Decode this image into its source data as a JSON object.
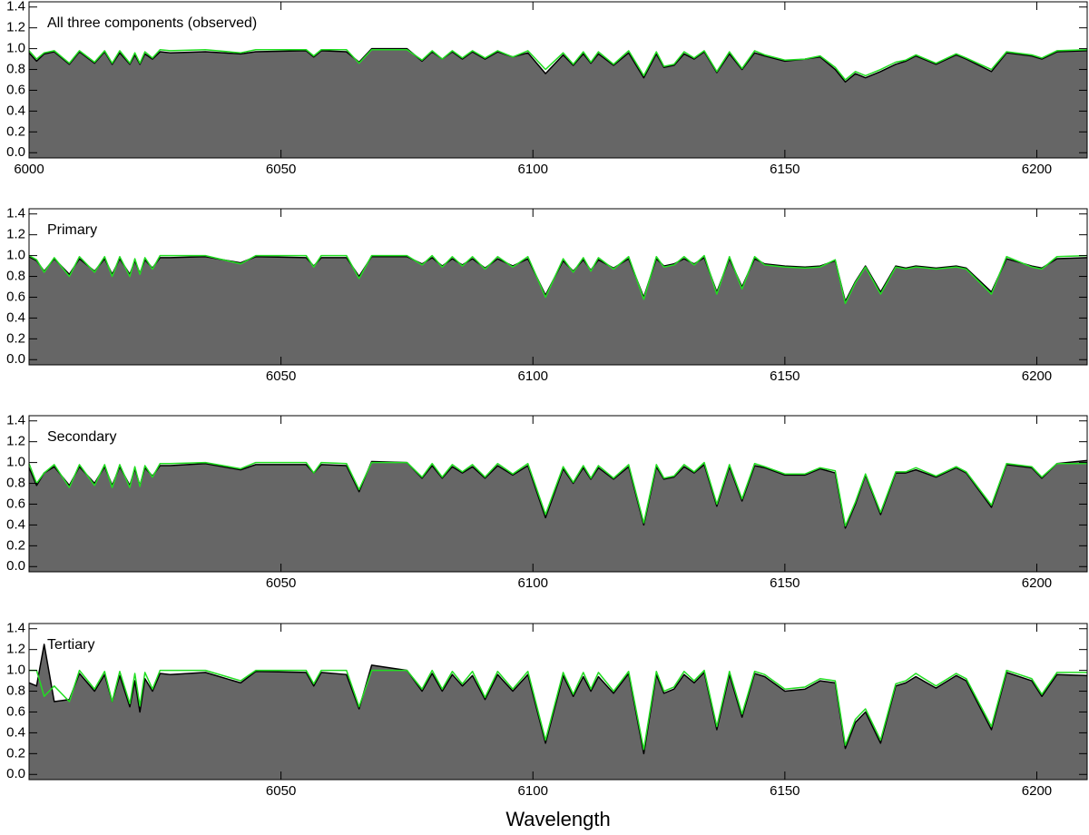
{
  "chart_data": [
    {
      "type": "line",
      "title": "All three components (observed)",
      "x": [
        6000,
        6001.5,
        6003,
        6005,
        6008,
        6010,
        6013,
        6015,
        6016.5,
        6018,
        6020,
        6021,
        6022,
        6023,
        6024.5,
        6026,
        6028,
        6035,
        6042,
        6045,
        6055,
        6056.5,
        6058,
        6063,
        6065.5,
        6068,
        6075,
        6078,
        6080,
        6082,
        6084,
        6086,
        6088,
        6090.5,
        6093,
        6096,
        6099,
        6102.5,
        6106,
        6108,
        6110,
        6111.5,
        6113,
        6116,
        6119,
        6122,
        6124.5,
        6126,
        6128,
        6130,
        6132,
        6134,
        6136.5,
        6139,
        6141.5,
        6144,
        6146,
        6150,
        6154,
        6157,
        6160,
        6162,
        6164,
        6166,
        6169,
        6172,
        6174,
        6176,
        6180,
        6184,
        6186,
        6191,
        6194,
        6199,
        6201,
        6204,
        6210
      ],
      "series": [
        {
          "color": "#000000",
          "fill": "#666666",
          "values": [
            0.96,
            0.88,
            0.95,
            0.97,
            0.85,
            0.97,
            0.86,
            0.97,
            0.85,
            0.96,
            0.85,
            0.94,
            0.85,
            0.95,
            0.9,
            0.97,
            0.96,
            0.97,
            0.95,
            0.97,
            0.98,
            0.92,
            0.98,
            0.97,
            0.87,
            1.0,
            1.0,
            0.88,
            0.97,
            0.9,
            0.97,
            0.9,
            0.97,
            0.9,
            0.97,
            0.92,
            0.96,
            0.76,
            0.94,
            0.84,
            0.95,
            0.86,
            0.95,
            0.84,
            0.96,
            0.72,
            0.95,
            0.82,
            0.84,
            0.95,
            0.9,
            0.97,
            0.77,
            0.95,
            0.8,
            0.96,
            0.93,
            0.88,
            0.9,
            0.92,
            0.8,
            0.68,
            0.76,
            0.72,
            0.78,
            0.85,
            0.88,
            0.93,
            0.85,
            0.94,
            0.9,
            0.78,
            0.96,
            0.93,
            0.9,
            0.97,
            0.98
          ]
        },
        {
          "color": "#22dd22",
          "values": [
            0.98,
            0.9,
            0.96,
            0.98,
            0.86,
            0.98,
            0.87,
            0.98,
            0.86,
            0.98,
            0.86,
            0.96,
            0.86,
            0.97,
            0.91,
            0.99,
            0.98,
            0.99,
            0.96,
            0.99,
            0.99,
            0.93,
            0.99,
            0.99,
            0.86,
            0.99,
            0.99,
            0.89,
            0.98,
            0.9,
            0.98,
            0.91,
            0.98,
            0.91,
            0.98,
            0.92,
            0.98,
            0.8,
            0.96,
            0.85,
            0.97,
            0.87,
            0.97,
            0.85,
            0.98,
            0.74,
            0.97,
            0.83,
            0.85,
            0.97,
            0.91,
            0.98,
            0.78,
            0.97,
            0.81,
            0.98,
            0.94,
            0.89,
            0.9,
            0.93,
            0.82,
            0.7,
            0.78,
            0.74,
            0.8,
            0.87,
            0.89,
            0.94,
            0.86,
            0.95,
            0.91,
            0.8,
            0.97,
            0.94,
            0.91,
            0.98,
            0.99
          ]
        }
      ],
      "xlim": [
        6000,
        6210
      ],
      "xticks": [
        6000,
        6050,
        6100,
        6150,
        6200
      ],
      "ylim": [
        -0.05,
        1.45
      ],
      "yticks": [
        {
          "value": 0,
          "label": "0.0"
        },
        0.2,
        0.4,
        0.6,
        0.8,
        {
          "value": 1,
          "label": "1.0"
        },
        1.2,
        1.4
      ]
    },
    {
      "type": "line",
      "title": "Primary",
      "x": [
        6000,
        6001.5,
        6003,
        6005,
        6008,
        6010,
        6013,
        6015,
        6016.5,
        6018,
        6020,
        6021,
        6022,
        6023,
        6024.5,
        6026,
        6028,
        6035,
        6042,
        6045,
        6055,
        6056.5,
        6058,
        6063,
        6065.5,
        6068,
        6075,
        6078,
        6080,
        6082,
        6084,
        6086,
        6088,
        6090.5,
        6093,
        6096,
        6099,
        6102.5,
        6106,
        6108,
        6110,
        6111.5,
        6113,
        6116,
        6119,
        6122,
        6124.5,
        6126,
        6128,
        6130,
        6132,
        6134,
        6136.5,
        6139,
        6141.5,
        6144,
        6146,
        6150,
        6154,
        6157,
        6160,
        6162,
        6164,
        6166,
        6169,
        6172,
        6174,
        6176,
        6180,
        6184,
        6186,
        6191,
        6194,
        6199,
        6201,
        6204,
        6210
      ],
      "series": [
        {
          "color": "#000000",
          "fill": "#666666",
          "values": [
            0.99,
            0.95,
            0.85,
            0.97,
            0.82,
            0.97,
            0.85,
            0.97,
            0.82,
            0.97,
            0.82,
            0.95,
            0.83,
            0.96,
            0.88,
            0.98,
            0.98,
            0.99,
            0.93,
            0.99,
            0.98,
            0.9,
            0.98,
            0.98,
            0.8,
            0.99,
            0.99,
            0.92,
            0.98,
            0.9,
            0.97,
            0.91,
            0.97,
            0.88,
            0.97,
            0.9,
            0.97,
            0.62,
            0.95,
            0.85,
            0.96,
            0.86,
            0.96,
            0.88,
            0.97,
            0.6,
            0.97,
            0.9,
            0.92,
            0.97,
            0.92,
            0.98,
            0.65,
            0.97,
            0.7,
            0.97,
            0.92,
            0.9,
            0.89,
            0.9,
            0.95,
            0.56,
            0.75,
            0.9,
            0.65,
            0.9,
            0.88,
            0.9,
            0.88,
            0.9,
            0.88,
            0.65,
            0.97,
            0.9,
            0.88,
            0.97,
            0.98
          ]
        },
        {
          "color": "#22dd22",
          "values": [
            1.0,
            0.96,
            0.84,
            0.98,
            0.8,
            0.99,
            0.84,
            0.99,
            0.8,
            0.99,
            0.8,
            0.97,
            0.82,
            0.98,
            0.87,
            1.0,
            1.0,
            1.0,
            0.92,
            1.0,
            1.0,
            0.89,
            1.0,
            1.0,
            0.78,
            1.0,
            1.0,
            0.91,
            1.0,
            0.89,
            0.99,
            0.9,
            0.99,
            0.87,
            0.99,
            0.89,
            0.99,
            0.6,
            0.97,
            0.84,
            0.98,
            0.85,
            0.98,
            0.87,
            0.99,
            0.58,
            0.99,
            0.89,
            0.91,
            0.99,
            0.91,
            1.0,
            0.63,
            0.99,
            0.68,
            0.99,
            0.91,
            0.89,
            0.88,
            0.89,
            0.96,
            0.54,
            0.74,
            0.89,
            0.63,
            0.89,
            0.87,
            0.89,
            0.87,
            0.89,
            0.87,
            0.63,
            0.99,
            0.89,
            0.87,
            0.99,
            1.0
          ]
        }
      ],
      "xlim": [
        6000,
        6210
      ],
      "xticks": [
        6050,
        6100,
        6150,
        6200
      ],
      "ylim": [
        -0.05,
        1.45
      ],
      "yticks": [
        {
          "value": 0,
          "label": "0.0"
        },
        0.2,
        0.4,
        0.6,
        0.8,
        {
          "value": 1,
          "label": "1.0"
        },
        1.2,
        1.4
      ]
    },
    {
      "type": "line",
      "title": "Secondary",
      "x": [
        6000,
        6001.5,
        6003,
        6005,
        6008,
        6010,
        6013,
        6015,
        6016.5,
        6018,
        6020,
        6021,
        6022,
        6023,
        6024.5,
        6026,
        6028,
        6035,
        6042,
        6045,
        6055,
        6056.5,
        6058,
        6063,
        6065.5,
        6068,
        6075,
        6078,
        6080,
        6082,
        6084,
        6086,
        6088,
        6090.5,
        6093,
        6096,
        6099,
        6102.5,
        6106,
        6108,
        6110,
        6111.5,
        6113,
        6116,
        6119,
        6122,
        6124.5,
        6126,
        6128,
        6130,
        6132,
        6134,
        6136.5,
        6139,
        6141.5,
        6144,
        6146,
        6150,
        6154,
        6157,
        6160,
        6162,
        6164,
        6166,
        6169,
        6172,
        6174,
        6176,
        6180,
        6184,
        6186,
        6191,
        6194,
        6199,
        6201,
        6204,
        6210
      ],
      "series": [
        {
          "color": "#000000",
          "fill": "#666666",
          "values": [
            0.95,
            0.78,
            0.9,
            0.96,
            0.78,
            0.96,
            0.8,
            0.96,
            0.78,
            0.96,
            0.78,
            0.94,
            0.78,
            0.95,
            0.87,
            0.97,
            0.97,
            0.99,
            0.93,
            0.98,
            0.98,
            0.9,
            0.98,
            0.97,
            0.72,
            1.01,
            1.0,
            0.85,
            0.97,
            0.85,
            0.96,
            0.9,
            0.96,
            0.85,
            0.97,
            0.88,
            0.97,
            0.47,
            0.94,
            0.8,
            0.95,
            0.84,
            0.95,
            0.84,
            0.96,
            0.4,
            0.96,
            0.84,
            0.86,
            0.96,
            0.9,
            0.98,
            0.58,
            0.96,
            0.63,
            0.97,
            0.95,
            0.88,
            0.88,
            0.94,
            0.9,
            0.37,
            0.6,
            0.88,
            0.5,
            0.9,
            0.9,
            0.93,
            0.86,
            0.95,
            0.9,
            0.57,
            0.98,
            0.95,
            0.85,
            0.99,
            1.02
          ]
        },
        {
          "color": "#22dd22",
          "values": [
            0.99,
            0.8,
            0.9,
            0.98,
            0.76,
            0.98,
            0.78,
            0.98,
            0.76,
            0.98,
            0.76,
            0.96,
            0.77,
            0.97,
            0.86,
            0.99,
            0.99,
            1.0,
            0.94,
            1.0,
            1.0,
            0.9,
            1.0,
            0.99,
            0.74,
            1.0,
            1.0,
            0.86,
            0.99,
            0.86,
            0.98,
            0.91,
            0.98,
            0.86,
            0.99,
            0.89,
            0.99,
            0.5,
            0.96,
            0.81,
            0.97,
            0.85,
            0.97,
            0.85,
            0.98,
            0.42,
            0.98,
            0.85,
            0.87,
            0.98,
            0.91,
            1.0,
            0.6,
            0.98,
            0.65,
            0.99,
            0.96,
            0.89,
            0.89,
            0.95,
            0.92,
            0.39,
            0.62,
            0.89,
            0.52,
            0.91,
            0.91,
            0.95,
            0.87,
            0.96,
            0.91,
            0.59,
            0.99,
            0.96,
            0.86,
            0.99,
            0.99
          ]
        }
      ],
      "xlim": [
        6000,
        6210
      ],
      "xticks": [
        6050,
        6100,
        6150,
        6200
      ],
      "ylim": [
        -0.05,
        1.45
      ],
      "yticks": [
        {
          "value": 0,
          "label": "0.0"
        },
        0.2,
        0.4,
        0.6,
        0.8,
        {
          "value": 1,
          "label": "1.0"
        },
        1.2,
        1.4
      ]
    },
    {
      "type": "line",
      "title": "Tertiary",
      "xlabel": "Wavelength",
      "x": [
        6000,
        6001.5,
        6003,
        6005,
        6008,
        6010,
        6013,
        6015,
        6016.5,
        6018,
        6020,
        6021,
        6022,
        6023,
        6024.5,
        6026,
        6028,
        6035,
        6042,
        6045,
        6055,
        6056.5,
        6058,
        6063,
        6065.5,
        6068,
        6075,
        6078,
        6080,
        6082,
        6084,
        6086,
        6088,
        6090.5,
        6093,
        6096,
        6099,
        6102.5,
        6106,
        6108,
        6110,
        6111.5,
        6113,
        6116,
        6119,
        6122,
        6124.5,
        6126,
        6128,
        6130,
        6132,
        6134,
        6136.5,
        6139,
        6141.5,
        6144,
        6146,
        6150,
        6154,
        6157,
        6160,
        6162,
        6164,
        6166,
        6169,
        6172,
        6174,
        6176,
        6180,
        6184,
        6186,
        6191,
        6194,
        6199,
        6201,
        6204,
        6210
      ],
      "series": [
        {
          "color": "#000000",
          "fill": "#666666",
          "values": [
            0.88,
            0.85,
            1.25,
            0.7,
            0.72,
            0.97,
            0.8,
            0.96,
            0.7,
            0.95,
            0.65,
            0.9,
            0.6,
            0.92,
            0.8,
            0.97,
            0.96,
            0.98,
            0.88,
            0.99,
            0.98,
            0.85,
            0.98,
            0.96,
            0.63,
            1.05,
            1.0,
            0.8,
            0.97,
            0.8,
            0.96,
            0.85,
            0.95,
            0.72,
            0.96,
            0.8,
            0.96,
            0.3,
            0.95,
            0.75,
            0.94,
            0.8,
            0.94,
            0.78,
            0.97,
            0.2,
            0.96,
            0.78,
            0.82,
            0.96,
            0.88,
            0.98,
            0.43,
            0.96,
            0.55,
            0.97,
            0.94,
            0.8,
            0.82,
            0.9,
            0.88,
            0.25,
            0.5,
            0.6,
            0.3,
            0.85,
            0.88,
            0.94,
            0.83,
            0.95,
            0.9,
            0.43,
            0.98,
            0.9,
            0.75,
            0.96,
            0.95
          ]
        },
        {
          "color": "#22dd22",
          "values": [
            1.0,
            1.0,
            0.75,
            0.85,
            0.7,
            1.0,
            0.82,
            0.99,
            0.7,
            0.99,
            0.68,
            0.97,
            0.66,
            0.98,
            0.82,
            1.0,
            1.0,
            1.0,
            0.9,
            1.0,
            1.0,
            0.87,
            1.0,
            1.0,
            0.65,
            1.0,
            1.0,
            0.82,
            1.0,
            0.82,
            0.99,
            0.87,
            0.99,
            0.74,
            0.99,
            0.82,
            0.99,
            0.33,
            0.98,
            0.77,
            0.98,
            0.82,
            0.98,
            0.8,
            0.99,
            0.24,
            0.99,
            0.8,
            0.84,
            0.99,
            0.9,
            1.0,
            0.46,
            0.99,
            0.58,
            0.99,
            0.96,
            0.82,
            0.84,
            0.92,
            0.9,
            0.28,
            0.53,
            0.63,
            0.33,
            0.87,
            0.9,
            0.97,
            0.85,
            0.97,
            0.92,
            0.46,
            1.0,
            0.92,
            0.77,
            0.98,
            0.98
          ]
        }
      ],
      "xlim": [
        6000,
        6210
      ],
      "xticks": [
        6050,
        6100,
        6150,
        6200
      ],
      "ylim": [
        -0.05,
        1.45
      ],
      "yticks": [
        {
          "value": 0,
          "label": "0.0"
        },
        0.2,
        0.4,
        0.6,
        0.8,
        {
          "value": 1,
          "label": "1.0"
        },
        1.2,
        1.4
      ]
    }
  ]
}
